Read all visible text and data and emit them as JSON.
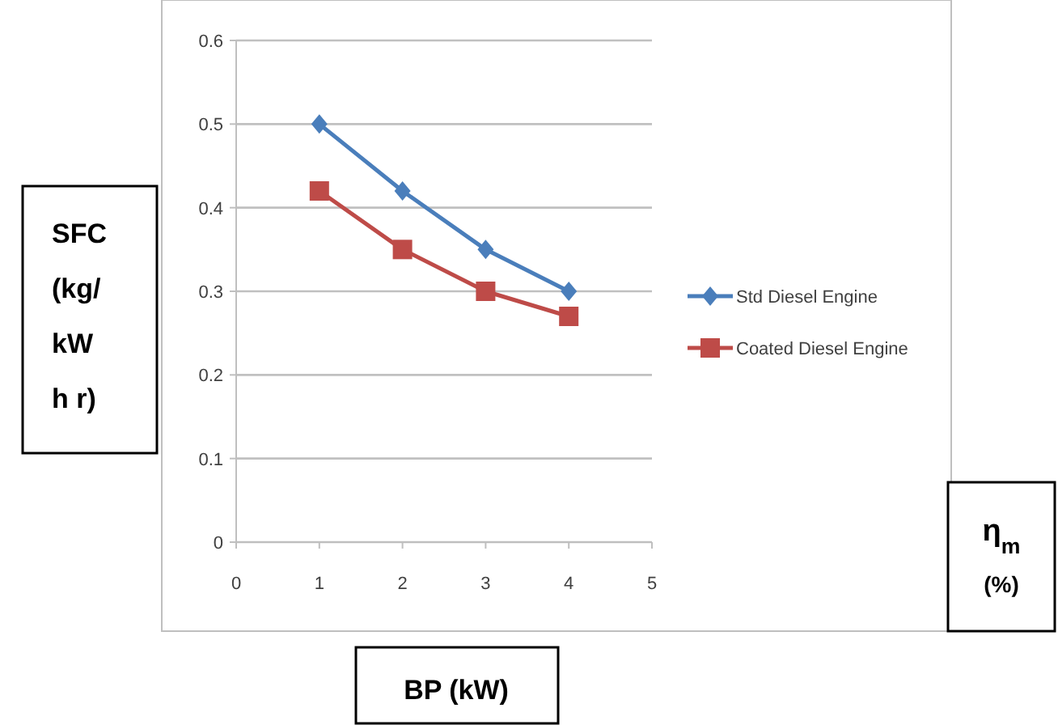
{
  "chart_data": {
    "type": "line",
    "xlabel": "BP (kW)",
    "ylabel": "SFC\n(kg/\nkW\nh r)",
    "annotations": [
      "η$_{m}$\n(%)"
    ],
    "xlim": [
      0,
      5
    ],
    "xticks": [
      0,
      1,
      2,
      3,
      4,
      5
    ],
    "ylim": [
      0,
      0.6
    ],
    "yticks": [
      0,
      0.1,
      0.2,
      0.3,
      0.4,
      0.5,
      0.6
    ],
    "grid": "y",
    "legend": "right",
    "series": [
      {
        "name": "Std Diesel Engine",
        "color": "#4a7ebb",
        "marker": "diamond",
        "x": [
          1,
          2,
          3,
          4
        ],
        "values": [
          0.5,
          0.42,
          0.35,
          0.3
        ]
      },
      {
        "name": "Coated Diesel Engine",
        "color": "#be4b48",
        "marker": "square",
        "x": [
          1,
          2,
          3,
          4
        ],
        "values": [
          0.42,
          0.35,
          0.3,
          0.27
        ]
      }
    ]
  }
}
